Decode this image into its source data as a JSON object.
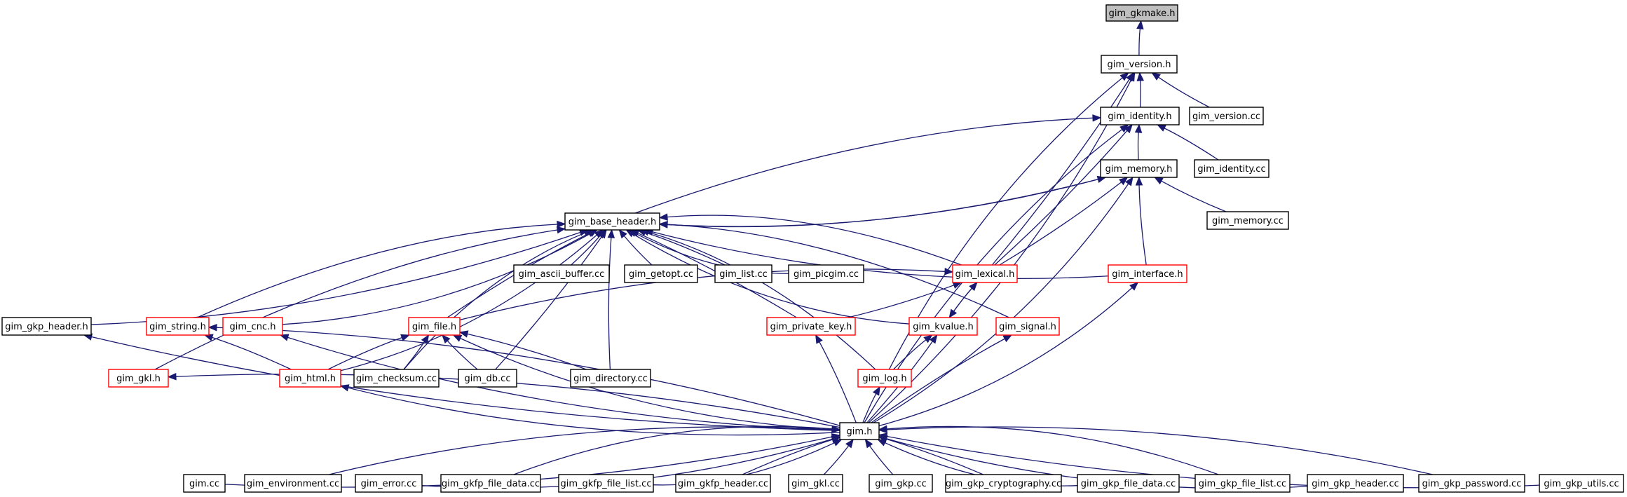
{
  "colors": {
    "edge": "#191970",
    "node_border_default": "#000000",
    "node_border_truncated": "#ff0000",
    "focus_fill": "#bfbfbf",
    "node_fill": "#ffffff"
  },
  "nodes": [
    {
      "id": "gkmake",
      "label": "gim_gkmake.h",
      "style": "focus"
    },
    {
      "id": "version",
      "label": "gim_version.h",
      "style": "normal"
    },
    {
      "id": "identity",
      "label": "gim_identity.h",
      "style": "normal"
    },
    {
      "id": "version_cc",
      "label": "gim_version.cc",
      "style": "normal"
    },
    {
      "id": "memory",
      "label": "gim_memory.h",
      "style": "normal"
    },
    {
      "id": "identity_cc",
      "label": "gim_identity.cc",
      "style": "normal"
    },
    {
      "id": "base_header",
      "label": "gim_base_header.h",
      "style": "normal"
    },
    {
      "id": "memory_cc",
      "label": "gim_memory.cc",
      "style": "normal"
    },
    {
      "id": "ascii_buffer_cc",
      "label": "gim_ascii_buffer.cc",
      "style": "normal"
    },
    {
      "id": "getopt_cc",
      "label": "gim_getopt.cc",
      "style": "normal"
    },
    {
      "id": "list_cc",
      "label": "gim_list.cc",
      "style": "normal"
    },
    {
      "id": "picgim_cc",
      "label": "gim_picgim.cc",
      "style": "normal"
    },
    {
      "id": "lexical",
      "label": "gim_lexical.h",
      "style": "truncated"
    },
    {
      "id": "interface",
      "label": "gim_interface.h",
      "style": "truncated"
    },
    {
      "id": "gkp_header_h",
      "label": "gim_gkp_header.h",
      "style": "normal"
    },
    {
      "id": "string",
      "label": "gim_string.h",
      "style": "truncated"
    },
    {
      "id": "cnc",
      "label": "gim_cnc.h",
      "style": "truncated"
    },
    {
      "id": "file",
      "label": "gim_file.h",
      "style": "truncated"
    },
    {
      "id": "private_key",
      "label": "gim_private_key.h",
      "style": "truncated"
    },
    {
      "id": "kvalue",
      "label": "gim_kvalue.h",
      "style": "truncated"
    },
    {
      "id": "signal",
      "label": "gim_signal.h",
      "style": "truncated"
    },
    {
      "id": "gkl_h",
      "label": "gim_gkl.h",
      "style": "truncated"
    },
    {
      "id": "html",
      "label": "gim_html.h",
      "style": "truncated"
    },
    {
      "id": "checksum_cc",
      "label": "gim_checksum.cc",
      "style": "normal"
    },
    {
      "id": "db_cc",
      "label": "gim_db.cc",
      "style": "normal"
    },
    {
      "id": "directory_cc",
      "label": "gim_directory.cc",
      "style": "normal"
    },
    {
      "id": "log",
      "label": "gim_log.h",
      "style": "truncated"
    },
    {
      "id": "gim_h",
      "label": "gim.h",
      "style": "normal"
    },
    {
      "id": "gim_cc",
      "label": "gim.cc",
      "style": "normal"
    },
    {
      "id": "environment_cc",
      "label": "gim_environment.cc",
      "style": "normal"
    },
    {
      "id": "error_cc",
      "label": "gim_error.cc",
      "style": "normal"
    },
    {
      "id": "gkfp_file_data_cc",
      "label": "gim_gkfp_file_data.cc",
      "style": "normal"
    },
    {
      "id": "gkfp_file_list_cc",
      "label": "gim_gkfp_file_list.cc",
      "style": "normal"
    },
    {
      "id": "gkfp_header_cc",
      "label": "gim_gkfp_header.cc",
      "style": "normal"
    },
    {
      "id": "gkl_cc",
      "label": "gim_gkl.cc",
      "style": "normal"
    },
    {
      "id": "gkp_cc",
      "label": "gim_gkp.cc",
      "style": "normal"
    },
    {
      "id": "gkp_cryptography_cc",
      "label": "gim_gkp_cryptography.cc",
      "style": "normal"
    },
    {
      "id": "gkp_file_data_cc",
      "label": "gim_gkp_file_data.cc",
      "style": "normal"
    },
    {
      "id": "gkp_file_list_cc",
      "label": "gim_gkp_file_list.cc",
      "style": "normal"
    },
    {
      "id": "gkp_header_cc",
      "label": "gim_gkp_header.cc",
      "style": "normal"
    },
    {
      "id": "gkp_password_cc",
      "label": "gim_gkp_password.cc",
      "style": "normal"
    },
    {
      "id": "gkp_utils_cc",
      "label": "gim_gkp_utils.cc",
      "style": "normal"
    }
  ],
  "edges": [
    {
      "from": "version",
      "to": "gkmake"
    },
    {
      "from": "identity",
      "to": "version"
    },
    {
      "from": "version_cc",
      "to": "version"
    },
    {
      "from": "lexical",
      "to": "version"
    },
    {
      "from": "log",
      "to": "version"
    },
    {
      "from": "gim_h",
      "to": "version"
    },
    {
      "from": "memory",
      "to": "identity"
    },
    {
      "from": "identity_cc",
      "to": "identity"
    },
    {
      "from": "base_header",
      "to": "identity"
    },
    {
      "from": "lexical",
      "to": "identity"
    },
    {
      "from": "gim_h",
      "to": "identity"
    },
    {
      "from": "base_header",
      "to": "memory"
    },
    {
      "from": "memory_cc",
      "to": "memory"
    },
    {
      "from": "lexical",
      "to": "memory"
    },
    {
      "from": "interface",
      "to": "memory"
    },
    {
      "from": "gim_h",
      "to": "memory"
    },
    {
      "from": "memory",
      "to": "base_header"
    },
    {
      "from": "ascii_buffer_cc",
      "to": "base_header"
    },
    {
      "from": "getopt_cc",
      "to": "base_header"
    },
    {
      "from": "list_cc",
      "to": "base_header"
    },
    {
      "from": "picgim_cc",
      "to": "base_header"
    },
    {
      "from": "lexical",
      "to": "base_header"
    },
    {
      "from": "interface",
      "to": "base_header"
    },
    {
      "from": "gkp_header_h",
      "to": "base_header"
    },
    {
      "from": "string",
      "to": "base_header"
    },
    {
      "from": "cnc",
      "to": "base_header"
    },
    {
      "from": "file",
      "to": "base_header"
    },
    {
      "from": "private_key",
      "to": "base_header"
    },
    {
      "from": "kvalue",
      "to": "base_header"
    },
    {
      "from": "signal",
      "to": "base_header"
    },
    {
      "from": "gkl_h",
      "to": "base_header"
    },
    {
      "from": "html",
      "to": "base_header"
    },
    {
      "from": "checksum_cc",
      "to": "base_header"
    },
    {
      "from": "db_cc",
      "to": "base_header"
    },
    {
      "from": "directory_cc",
      "to": "base_header"
    },
    {
      "from": "log",
      "to": "base_header"
    },
    {
      "from": "file",
      "to": "lexical"
    },
    {
      "from": "private_key",
      "to": "lexical"
    },
    {
      "from": "kvalue",
      "to": "lexical"
    },
    {
      "from": "lexical",
      "to": "kvalue"
    },
    {
      "from": "html",
      "to": "file"
    },
    {
      "from": "checksum_cc",
      "to": "file"
    },
    {
      "from": "db_cc",
      "to": "file"
    },
    {
      "from": "directory_cc",
      "to": "file"
    },
    {
      "from": "gim_h",
      "to": "file"
    },
    {
      "from": "html",
      "to": "string"
    },
    {
      "from": "log",
      "to": "kvalue"
    },
    {
      "from": "gim_h",
      "to": "kvalue"
    },
    {
      "from": "gim_h",
      "to": "log"
    },
    {
      "from": "gim_h",
      "to": "private_key"
    },
    {
      "from": "gim_h",
      "to": "signal"
    },
    {
      "from": "gim_h",
      "to": "interface"
    },
    {
      "from": "gim_h",
      "to": "gkp_header_h"
    },
    {
      "from": "gim_h",
      "to": "string"
    },
    {
      "from": "gim_h",
      "to": "cnc"
    },
    {
      "from": "gim_h",
      "to": "gkl_h"
    },
    {
      "from": "gim_h",
      "to": "html"
    },
    {
      "from": "gim_cc",
      "to": "gim_h"
    },
    {
      "from": "environment_cc",
      "to": "gim_h"
    },
    {
      "from": "error_cc",
      "to": "gim_h"
    },
    {
      "from": "gkfp_file_data_cc",
      "to": "gim_h"
    },
    {
      "from": "gkfp_file_list_cc",
      "to": "gim_h"
    },
    {
      "from": "gkfp_header_cc",
      "to": "gim_h"
    },
    {
      "from": "gkl_cc",
      "to": "gim_h"
    },
    {
      "from": "gkp_cc",
      "to": "gim_h"
    },
    {
      "from": "gkp_cryptography_cc",
      "to": "gim_h"
    },
    {
      "from": "gkp_file_data_cc",
      "to": "gim_h"
    },
    {
      "from": "gkp_file_list_cc",
      "to": "gim_h"
    },
    {
      "from": "gkp_header_cc",
      "to": "gim_h"
    },
    {
      "from": "gkp_password_cc",
      "to": "gim_h"
    },
    {
      "from": "gkp_utils_cc",
      "to": "gim_h"
    }
  ]
}
